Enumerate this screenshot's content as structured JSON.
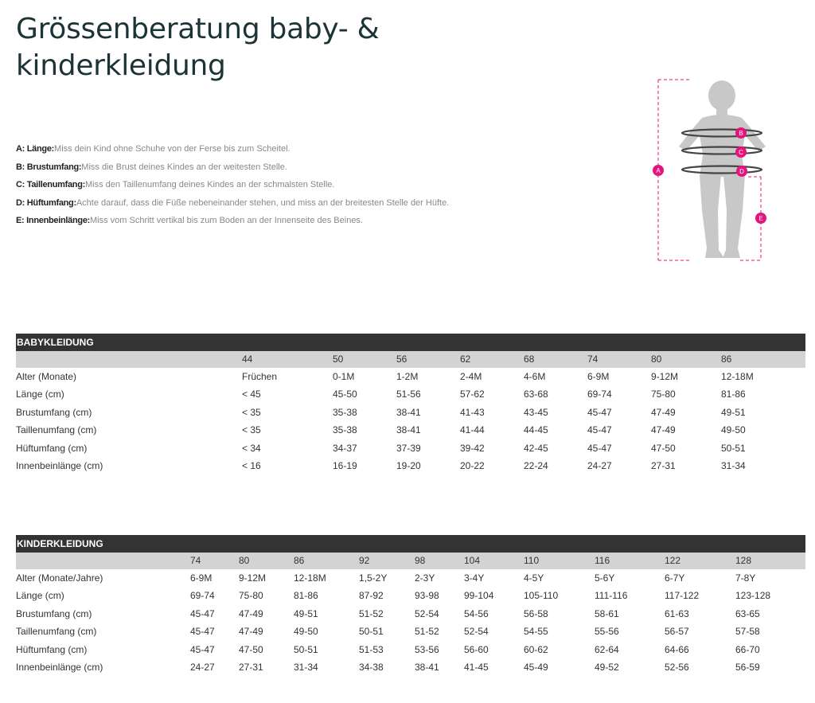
{
  "page": {
    "title": "Grössenberatung baby- & kinderkleidung"
  },
  "measurements": [
    {
      "label": "A: Länge:",
      "text": "Miss dein Kind ohne Schuhe von der Ferse bis zum Scheitel."
    },
    {
      "label": "B: Brustumfang:",
      "text": "Miss die Brust deines Kindes an der weitesten Stelle."
    },
    {
      "label": "C: Taillenumfang:",
      "text": "Miss den Taillenumfang deines Kindes an der schmalsten Stelle."
    },
    {
      "label": "D: Hüftumfang:",
      "text": "Achte darauf, dass die Füße nebeneinander stehen, und miss an der breitesten Stelle der Hüfte."
    },
    {
      "label": "E: Innenbeinlänge:",
      "text": "Miss vom Schritt vertikal bis zum Boden an der Innenseite des Beines."
    }
  ],
  "figure": {
    "markers": [
      "A",
      "B",
      "C",
      "D",
      "E"
    ],
    "colors": {
      "marker": "#e5147c",
      "silhouette": "#c8c8c8",
      "tape": "#444444"
    }
  },
  "tables": [
    {
      "title": "BABYKLEIDUNG",
      "sizes": [
        "44",
        "50",
        "56",
        "62",
        "68",
        "74",
        "80",
        "86"
      ],
      "rows": [
        {
          "label": "Alter (Monate)",
          "values": [
            "Früchen",
            "0-1M",
            "1-2M",
            "2-4M",
            "4-6M",
            "6-9M",
            "9-12M",
            "12-18M"
          ]
        },
        {
          "label": "Länge (cm)",
          "values": [
            "< 45",
            "45-50",
            "51-56",
            "57-62",
            "63-68",
            "69-74",
            "75-80",
            "81-86"
          ]
        },
        {
          "label": "Brustumfang (cm)",
          "values": [
            "< 35",
            "35-38",
            "38-41",
            "41-43",
            "43-45",
            "45-47",
            "47-49",
            "49-51"
          ]
        },
        {
          "label": "Taillenumfang (cm)",
          "values": [
            "< 35",
            "35-38",
            "38-41",
            "41-44",
            "44-45",
            "45-47",
            "47-49",
            "49-50"
          ]
        },
        {
          "label": "Hüftumfang (cm)",
          "values": [
            "< 34",
            "34-37",
            "37-39",
            "39-42",
            "42-45",
            "45-47",
            "47-50",
            "50-51"
          ]
        },
        {
          "label": "Innenbeinlänge (cm)",
          "values": [
            "< 16",
            "16-19",
            "19-20",
            "20-22",
            "22-24",
            "24-27",
            "27-31",
            "31-34"
          ]
        }
      ]
    },
    {
      "title": "KINDERKLEIDUNG",
      "sizes": [
        "74",
        "80",
        "86",
        "92",
        "98",
        "104",
        "110",
        "116",
        "122",
        "128"
      ],
      "rows": [
        {
          "label": "Alter (Monate/Jahre)",
          "values": [
            "6-9M",
            "9-12M",
            "12-18M",
            "1,5-2Y",
            "2-3Y",
            "3-4Y",
            "4-5Y",
            "5-6Y",
            "6-7Y",
            "7-8Y"
          ]
        },
        {
          "label": "Länge (cm)",
          "values": [
            "69-74",
            "75-80",
            "81-86",
            "87-92",
            "93-98",
            "99-104",
            "105-110",
            "111-116",
            "117-122",
            "123-128"
          ]
        },
        {
          "label": "Brustumfang (cm)",
          "values": [
            "45-47",
            "47-49",
            "49-51",
            "51-52",
            "52-54",
            "54-56",
            "56-58",
            "58-61",
            "61-63",
            "63-65"
          ]
        },
        {
          "label": "Taillenumfang (cm)",
          "values": [
            "45-47",
            "47-49",
            "49-50",
            "50-51",
            "51-52",
            "52-54",
            "54-55",
            "55-56",
            "56-57",
            "57-58"
          ]
        },
        {
          "label": "Hüftumfang (cm)",
          "values": [
            "45-47",
            "47-50",
            "50-51",
            "51-53",
            "53-56",
            "56-60",
            "60-62",
            "62-64",
            "64-66",
            "66-70"
          ]
        },
        {
          "label": "Innenbeinlänge (cm)",
          "values": [
            "24-27",
            "27-31",
            "31-34",
            "34-38",
            "38-41",
            "41-45",
            "45-49",
            "49-52",
            "52-56",
            "56-59"
          ]
        }
      ]
    }
  ]
}
